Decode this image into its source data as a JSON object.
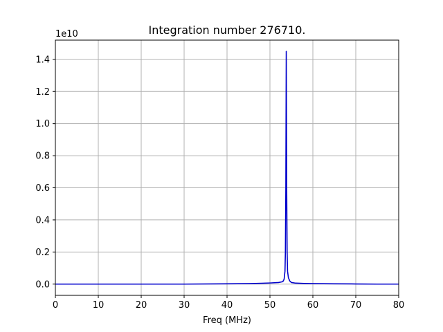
{
  "chart_data": {
    "type": "line",
    "title": "Integration number 276710.",
    "xlabel": "Freq (MHz)",
    "ylabel": "",
    "y_offset_text": "1e10",
    "xlim": [
      0,
      80
    ],
    "ylim": [
      -0.07,
      1.52
    ],
    "x_ticks": [
      0,
      10,
      20,
      30,
      40,
      50,
      60,
      70,
      80
    ],
    "x_tick_labels": [
      "0",
      "10",
      "20",
      "30",
      "40",
      "50",
      "60",
      "70",
      "80"
    ],
    "y_ticks": [
      0.0,
      0.2,
      0.4,
      0.6,
      0.8,
      1.0,
      1.2,
      1.4
    ],
    "y_tick_labels": [
      "0.0",
      "0.2",
      "0.4",
      "0.6",
      "0.8",
      "1.0",
      "1.2",
      "1.4"
    ],
    "grid": true,
    "series": [
      {
        "color": "#0000cc",
        "x": [
          0,
          10,
          20,
          30,
          40,
          45,
          48,
          50,
          52,
          53,
          53.3,
          53.5,
          53.6,
          53.7,
          53.8,
          53.9,
          54.0,
          54.1,
          54.3,
          54.6,
          55,
          56,
          58,
          60,
          65,
          70,
          75,
          80
        ],
        "y": [
          0.0,
          0.0,
          0.0,
          0.0,
          0.002,
          0.003,
          0.005,
          0.007,
          0.01,
          0.015,
          0.03,
          0.08,
          0.2,
          0.6,
          1.45,
          0.6,
          0.2,
          0.08,
          0.04,
          0.02,
          0.01,
          0.006,
          0.004,
          0.003,
          0.002,
          0.001,
          0.0,
          0.0
        ]
      }
    ]
  }
}
